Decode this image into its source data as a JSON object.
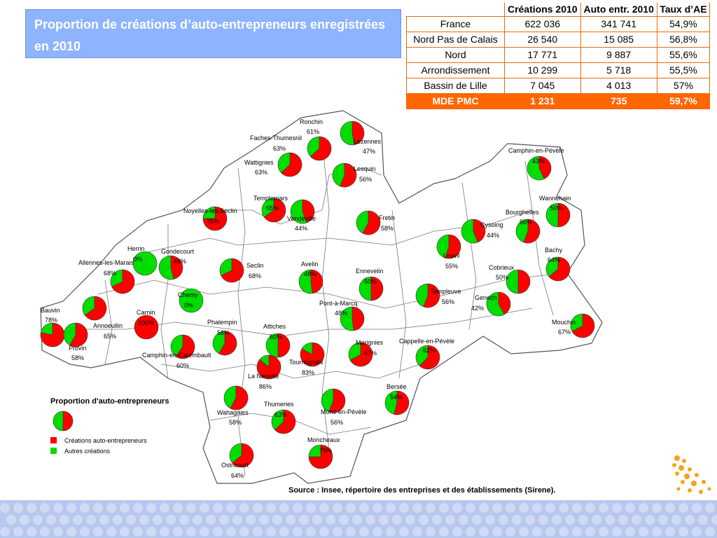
{
  "title": "Proportion de créations d’auto-entrepreneurs enregistrées en 2010",
  "table": {
    "headers": [
      "Créations 2010",
      "Auto entr. 2010",
      "Taux d’AE"
    ],
    "rows": [
      {
        "label": "France",
        "creations": "622 036",
        "ae": "341 741",
        "taux": "54,9%"
      },
      {
        "label": "Nord Pas de Calais",
        "creations": "26 540",
        "ae": "15 085",
        "taux": "56,8%"
      },
      {
        "label": "Nord",
        "creations": "17 771",
        "ae": "9 887",
        "taux": "55,6%"
      },
      {
        "label": "Arrondissement",
        "creations": "10 299",
        "ae": "5 718",
        "taux": "55,5%"
      },
      {
        "label": "Bassin de Lille",
        "creations": "7 045",
        "ae": "4 013",
        "taux": "57%"
      },
      {
        "label": "MDE PMC",
        "creations": "1 231",
        "ae": "735",
        "taux": "59,7%"
      }
    ]
  },
  "legend": {
    "title": "Proportion d'auto-entrepreneurs",
    "items": [
      {
        "label": "Créations auto-entrepreneurs",
        "color": "#FF0000"
      },
      {
        "label": "Autres créations",
        "color": "#00DD00"
      }
    ]
  },
  "source": "Source : Insee, répertoire des entreprises et des établissements (Sirene).",
  "colors": {
    "ae": "#FF0000",
    "other": "#00DD00",
    "accent": "#FF6600",
    "title_bg": "#8EB4FF"
  },
  "communes": [
    {
      "name": "Ronchin",
      "pct": "61%",
      "value": 61
    },
    {
      "name": "Lezennes",
      "pct": "47%",
      "value": 47
    },
    {
      "name": "Faches-Thumesnil",
      "pct": "63%",
      "value": 63
    },
    {
      "name": "Wattignies",
      "pct": "63%",
      "value": 63
    },
    {
      "name": "Lesquin",
      "pct": "56%",
      "value": 56
    },
    {
      "name": "Templemars",
      "pct": "65%",
      "value": 65
    },
    {
      "name": "Noyelles-les-Seclin",
      "pct": "75%",
      "value": 75
    },
    {
      "name": "Vendeville",
      "pct": "44%",
      "value": 44
    },
    {
      "name": "Fretin",
      "pct": "58%",
      "value": 58
    },
    {
      "name": "Camphin-en-Pévèle",
      "pct": "43%",
      "value": 43
    },
    {
      "name": "Wannehain",
      "pct": "50%",
      "value": 50
    },
    {
      "name": "Bourghelles",
      "pct": "56%",
      "value": 56
    },
    {
      "name": "Cysoing",
      "pct": "44%",
      "value": 44
    },
    {
      "name": "Louvil",
      "pct": "55%",
      "value": 55
    },
    {
      "name": "Bachy",
      "pct": "64%",
      "value": 64
    },
    {
      "name": "Herrin",
      "pct": "0%",
      "value": 0
    },
    {
      "name": "Gondecourt",
      "pct": "46%",
      "value": 46
    },
    {
      "name": "Allennes-les-Marais",
      "pct": "68%",
      "value": 68
    },
    {
      "name": "Seclin",
      "pct": "68%",
      "value": 68
    },
    {
      "name": "Avelin",
      "pct": "48%",
      "value": 48
    },
    {
      "name": "Ennevelin",
      "pct": "50%",
      "value": 50
    },
    {
      "name": "Cobrieux",
      "pct": "50%",
      "value": 50
    },
    {
      "name": "Templeuve",
      "pct": "56%",
      "value": 56
    },
    {
      "name": "Genech",
      "pct": "42%",
      "value": 42
    },
    {
      "name": "Chemy",
      "pct": "0%",
      "value": 0
    },
    {
      "name": "Carnin",
      "pct": "100%",
      "value": 100
    },
    {
      "name": "Bauvin",
      "pct": "78%",
      "value": 78
    },
    {
      "name": "Annoeullin",
      "pct": "65%",
      "value": 65
    },
    {
      "name": "Provin",
      "pct": "58%",
      "value": 58
    },
    {
      "name": "Pont-à-Marcq",
      "pct": "48%",
      "value": 48
    },
    {
      "name": "Mouchin",
      "pct": "67%",
      "value": 67
    },
    {
      "name": "Phalempin",
      "pct": "58%",
      "value": 58
    },
    {
      "name": "Camphin-en-Carembault",
      "pct": "60%",
      "value": 60
    },
    {
      "name": "Attiches",
      "pct": "50%",
      "value": 50
    },
    {
      "name": "Merignies",
      "pct": "67%",
      "value": 67
    },
    {
      "name": "Cappelle-en-Pévèle",
      "pct": "62%",
      "value": 62
    },
    {
      "name": "La Neuville",
      "pct": "86%",
      "value": 86
    },
    {
      "name": "Tourmignies",
      "pct": "83%",
      "value": 83
    },
    {
      "name": "Bersée",
      "pct": "54%",
      "value": 54
    },
    {
      "name": "Wahagnies",
      "pct": "58%",
      "value": 58
    },
    {
      "name": "Thumeries",
      "pct": "63%",
      "value": 63
    },
    {
      "name": "Mons-en-Pévèle",
      "pct": "56%",
      "value": 56
    },
    {
      "name": "Moncheaux",
      "pct": "75%",
      "value": 75
    },
    {
      "name": "Ostricourt",
      "pct": "64%",
      "value": 64
    }
  ]
}
